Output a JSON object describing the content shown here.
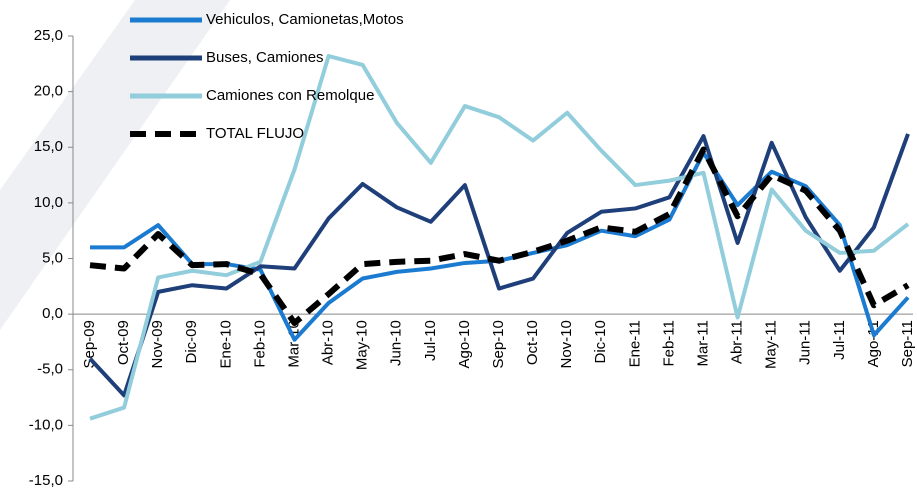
{
  "chart_data": {
    "type": "line",
    "categories": [
      "Sep-09",
      "Oct-09",
      "Nov-09",
      "Dic-09",
      "Ene-10",
      "Feb-10",
      "Mar-10",
      "Abr-10",
      "May-10",
      "Jun-10",
      "Jul-10",
      "Ago-10",
      "Sep-10",
      "Oct-10",
      "Nov-10",
      "Dic-10",
      "Ene-11",
      "Feb-11",
      "Mar-11",
      "Abr-11",
      "May-11",
      "Jun-11",
      "Jul-11",
      "Ago-11",
      "Sep-11"
    ],
    "series": [
      {
        "name": "Vehiculos, Camionetas,Motos",
        "color": "#1b7bd0",
        "dashed": false,
        "values": [
          6.0,
          6.0,
          8.0,
          4.5,
          4.5,
          4.0,
          -2.3,
          1.0,
          3.2,
          3.8,
          4.1,
          4.6,
          4.8,
          5.5,
          6.2,
          7.5,
          7.0,
          8.5,
          14.5,
          9.8,
          12.8,
          11.5,
          8.0,
          -1.9,
          1.5
        ]
      },
      {
        "name": "Buses, Camiones",
        "color": "#1f3f7a",
        "dashed": false,
        "values": [
          -4.0,
          -7.3,
          2.0,
          2.6,
          2.3,
          4.3,
          4.1,
          8.6,
          11.7,
          9.6,
          8.3,
          11.6,
          2.3,
          3.2,
          7.3,
          9.2,
          9.5,
          10.5,
          16.0,
          6.4,
          15.4,
          8.7,
          3.9,
          7.8,
          16.2
        ]
      },
      {
        "name": "Camiones con Remolque",
        "color": "#92cddc",
        "dashed": false,
        "values": [
          -9.4,
          -8.4,
          3.3,
          3.9,
          3.5,
          4.7,
          13.0,
          23.2,
          22.4,
          17.2,
          13.6,
          18.7,
          17.7,
          15.6,
          18.1,
          14.7,
          11.6,
          12.0,
          12.7,
          -0.3,
          11.2,
          7.5,
          5.5,
          5.7,
          8.1
        ]
      },
      {
        "name": "TOTAL FLUJO",
        "color": "#000000",
        "dashed": true,
        "values": [
          4.4,
          4.1,
          7.2,
          4.4,
          4.5,
          3.6,
          -0.8,
          1.8,
          4.5,
          4.7,
          4.8,
          5.4,
          4.8,
          5.6,
          6.6,
          7.8,
          7.4,
          9.0,
          14.8,
          8.8,
          12.5,
          11.1,
          7.5,
          0.8,
          2.6
        ]
      }
    ],
    "ylim": [
      -15,
      25
    ],
    "yticks": [
      {
        "value": -15,
        "label": "-15,0"
      },
      {
        "value": -10,
        "label": "-10,0"
      },
      {
        "value": -5,
        "label": "-5,0"
      },
      {
        "value": 0,
        "label": "0,0"
      },
      {
        "value": 5,
        "label": "5,0"
      },
      {
        "value": 10,
        "label": "10,0"
      },
      {
        "value": 15,
        "label": "15,0"
      },
      {
        "value": 20,
        "label": "20,0"
      },
      {
        "value": 25,
        "label": "25,0"
      }
    ],
    "grid": false,
    "legend": "top-left"
  }
}
